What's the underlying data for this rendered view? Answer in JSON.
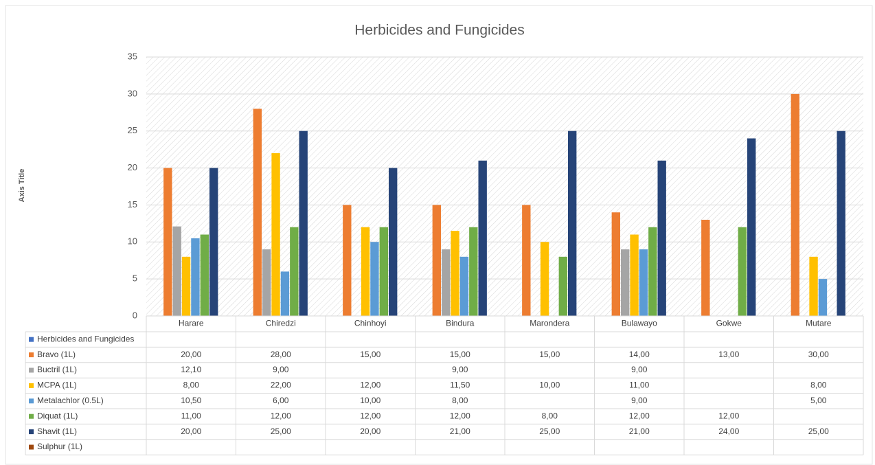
{
  "chart_data": {
    "type": "bar",
    "title": "Herbicides and Fungicides",
    "y_label": "Axis Title",
    "categories": [
      "Harare",
      "Chiredzi",
      "Chinhoyi",
      "Bindura",
      "Marondera",
      "Bulawayo",
      "Gokwe",
      "Mutare"
    ],
    "series": [
      {
        "name": "Herbicides and Fungicides",
        "color": "#4472c4",
        "values": [
          null,
          null,
          null,
          null,
          null,
          null,
          null,
          null
        ],
        "value_labels": [
          null,
          null,
          null,
          null,
          null,
          null,
          null,
          null
        ]
      },
      {
        "name": "Bravo (1L)",
        "color": "#ed7d31",
        "values": [
          20,
          28,
          15,
          15,
          15,
          14,
          13,
          30
        ],
        "value_labels": [
          "20,00",
          "28,00",
          "15,00",
          "15,00",
          "15,00",
          "14,00",
          "13,00",
          "30,00"
        ]
      },
      {
        "name": "Buctril (1L)",
        "color": "#a5a5a5",
        "values": [
          12.1,
          9,
          null,
          9,
          null,
          9,
          null,
          null
        ],
        "value_labels": [
          "12,10",
          "9,00",
          null,
          "9,00",
          null,
          "9,00",
          null,
          null
        ]
      },
      {
        "name": "MCPA (1L)",
        "color": "#ffc000",
        "values": [
          8,
          22,
          12,
          11.5,
          10,
          11,
          null,
          8
        ],
        "value_labels": [
          "8,00",
          "22,00",
          "12,00",
          "11,50",
          "10,00",
          "11,00",
          null,
          "8,00"
        ]
      },
      {
        "name": "Metalachlor (0.5L)",
        "color": "#5b9bd5",
        "values": [
          10.5,
          6,
          10,
          8,
          null,
          9,
          null,
          5
        ],
        "value_labels": [
          "10,50",
          "6,00",
          "10,00",
          "8,00",
          null,
          "9,00",
          null,
          "5,00"
        ]
      },
      {
        "name": "Diquat (1L)",
        "color": "#70ad47",
        "values": [
          11,
          12,
          12,
          12,
          8,
          12,
          12,
          null
        ],
        "value_labels": [
          "11,00",
          "12,00",
          "12,00",
          "12,00",
          "8,00",
          "12,00",
          "12,00",
          null
        ]
      },
      {
        "name": "Shavit (1L)",
        "color": "#264478",
        "values": [
          20,
          25,
          20,
          21,
          25,
          21,
          24,
          25
        ],
        "value_labels": [
          "20,00",
          "25,00",
          "20,00",
          "21,00",
          "25,00",
          "21,00",
          "24,00",
          "25,00"
        ]
      },
      {
        "name": "Sulphur (1L)",
        "color": "#9e480e",
        "values": [
          null,
          null,
          null,
          null,
          null,
          null,
          null,
          null
        ],
        "value_labels": [
          null,
          null,
          null,
          null,
          null,
          null,
          null,
          null
        ]
      }
    ],
    "ylim": [
      0,
      35
    ],
    "yticks": [
      0,
      5,
      10,
      15,
      20,
      25,
      30,
      35
    ],
    "grid": true
  }
}
